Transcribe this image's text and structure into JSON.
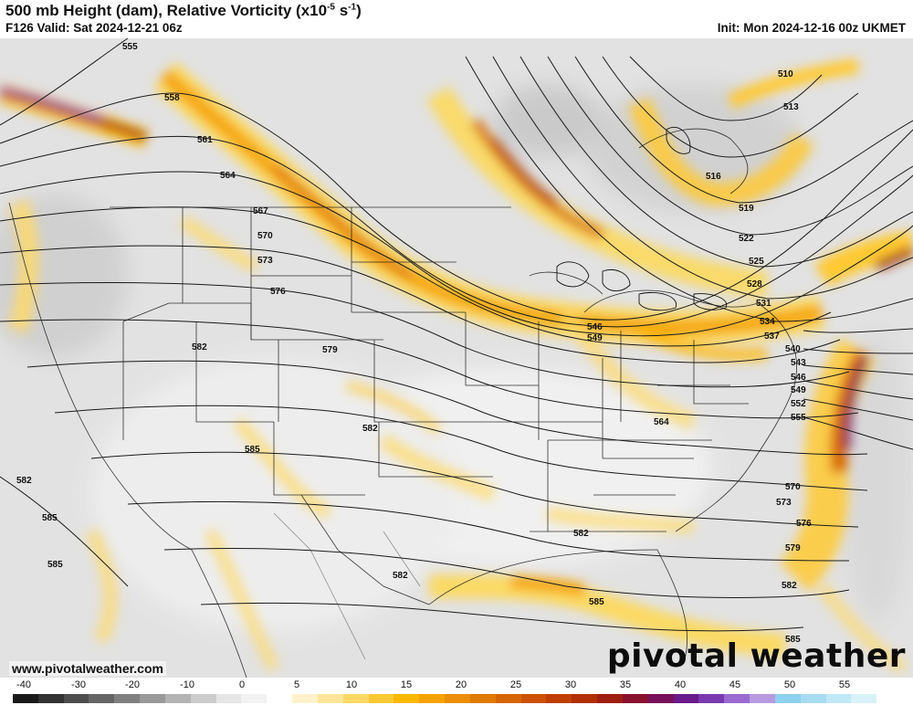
{
  "header": {
    "title_main": "500 mb Height (dam), Relative Vorticity (x10",
    "title_exp1": "-5",
    "title_mid": " s",
    "title_exp2": "-1",
    "title_end": ")",
    "valid": "F126 Valid: Sat 2024-12-21 06z",
    "init": "Init: Mon 2024-12-16 00z UKMET"
  },
  "footer": {
    "website": "www.pivotalweather.com",
    "brand": "pivotal weather"
  },
  "colorbar": {
    "tick_labels": [
      "-40",
      "-30",
      "-20",
      "-10",
      "0",
      "5",
      "10",
      "15",
      "20",
      "25",
      "30",
      "35",
      "40",
      "45",
      "50",
      "55"
    ],
    "colors": [
      "#1a1a1a",
      "#333333",
      "#4d4d4d",
      "#666666",
      "#808080",
      "#999999",
      "#b3b3b3",
      "#cccccc",
      "#e6e6e6",
      "#f2f2f2",
      "#ffffff",
      "#fff2cc",
      "#ffe699",
      "#ffd966",
      "#ffc933",
      "#ffb800",
      "#f5a300",
      "#eb8f00",
      "#e07a00",
      "#d66600",
      "#cc5200",
      "#c04000",
      "#b03000",
      "#9e1f10",
      "#8a1030",
      "#76105a",
      "#6a1a8a",
      "#7a3ab0",
      "#9a6ad0",
      "#b89ae0",
      "#8fd0ee",
      "#a8dcf2",
      "#c0e8f6",
      "#d8f2fa"
    ]
  },
  "map": {
    "contour_labels": [
      {
        "text": "555"
      },
      {
        "text": "558"
      },
      {
        "text": "561"
      },
      {
        "text": "564"
      },
      {
        "text": "567"
      },
      {
        "text": "570"
      },
      {
        "text": "573"
      },
      {
        "text": "576"
      },
      {
        "text": "579"
      },
      {
        "text": "582"
      },
      {
        "text": "582"
      },
      {
        "text": "582"
      },
      {
        "text": "585"
      },
      {
        "text": "582"
      },
      {
        "text": "585"
      },
      {
        "text": "585"
      },
      {
        "text": "510"
      },
      {
        "text": "513"
      },
      {
        "text": "516"
      },
      {
        "text": "519"
      },
      {
        "text": "522"
      },
      {
        "text": "525"
      },
      {
        "text": "528"
      },
      {
        "text": "531"
      },
      {
        "text": "534"
      },
      {
        "text": "537"
      },
      {
        "text": "540"
      },
      {
        "text": "543"
      },
      {
        "text": "546"
      },
      {
        "text": "549"
      },
      {
        "text": "552"
      },
      {
        "text": "555"
      },
      {
        "text": "546"
      },
      {
        "text": "549"
      },
      {
        "text": "564"
      },
      {
        "text": "570"
      },
      {
        "text": "573"
      },
      {
        "text": "576"
      },
      {
        "text": "579"
      },
      {
        "text": "582"
      },
      {
        "text": "582"
      },
      {
        "text": "585"
      },
      {
        "text": "585"
      }
    ]
  }
}
